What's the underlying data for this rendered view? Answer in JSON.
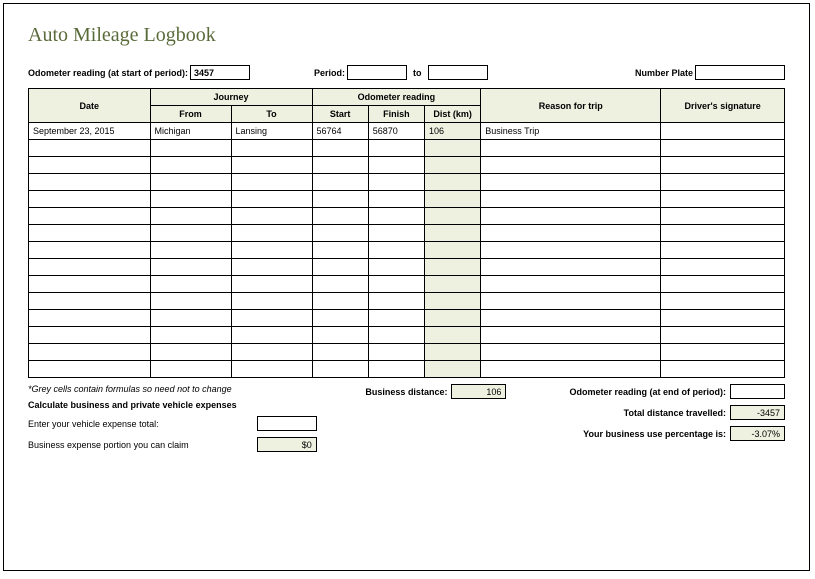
{
  "title": "Auto Mileage Logbook",
  "header": {
    "odometer_start_label": "Odometer reading (at start of period):",
    "odometer_start_value": "3457",
    "period_label": "Period:",
    "period_from": "",
    "period_to_label": "to",
    "period_to": "",
    "number_plate_label": "Number Plate",
    "number_plate_value": ""
  },
  "columns": {
    "date": "Date",
    "journey": "Journey",
    "from": "From",
    "to": "To",
    "odometer": "Odometer reading",
    "start": "Start",
    "finish": "Finish",
    "dist": "Dist (km)",
    "reason": "Reason for trip",
    "signature": "Driver's signature"
  },
  "rows": [
    {
      "date": "September 23, 2015",
      "from": "Michigan",
      "to": "Lansing",
      "start": "56764",
      "finish": "56870",
      "dist": "106",
      "reason": "Business Trip",
      "sig": ""
    },
    {
      "date": "",
      "from": "",
      "to": "",
      "start": "",
      "finish": "",
      "dist": "",
      "reason": "",
      "sig": ""
    },
    {
      "date": "",
      "from": "",
      "to": "",
      "start": "",
      "finish": "",
      "dist": "",
      "reason": "",
      "sig": ""
    },
    {
      "date": "",
      "from": "",
      "to": "",
      "start": "",
      "finish": "",
      "dist": "",
      "reason": "",
      "sig": ""
    },
    {
      "date": "",
      "from": "",
      "to": "",
      "start": "",
      "finish": "",
      "dist": "",
      "reason": "",
      "sig": ""
    },
    {
      "date": "",
      "from": "",
      "to": "",
      "start": "",
      "finish": "",
      "dist": "",
      "reason": "",
      "sig": ""
    },
    {
      "date": "",
      "from": "",
      "to": "",
      "start": "",
      "finish": "",
      "dist": "",
      "reason": "",
      "sig": ""
    },
    {
      "date": "",
      "from": "",
      "to": "",
      "start": "",
      "finish": "",
      "dist": "",
      "reason": "",
      "sig": ""
    },
    {
      "date": "",
      "from": "",
      "to": "",
      "start": "",
      "finish": "",
      "dist": "",
      "reason": "",
      "sig": ""
    },
    {
      "date": "",
      "from": "",
      "to": "",
      "start": "",
      "finish": "",
      "dist": "",
      "reason": "",
      "sig": ""
    },
    {
      "date": "",
      "from": "",
      "to": "",
      "start": "",
      "finish": "",
      "dist": "",
      "reason": "",
      "sig": ""
    },
    {
      "date": "",
      "from": "",
      "to": "",
      "start": "",
      "finish": "",
      "dist": "",
      "reason": "",
      "sig": ""
    },
    {
      "date": "",
      "from": "",
      "to": "",
      "start": "",
      "finish": "",
      "dist": "",
      "reason": "",
      "sig": ""
    },
    {
      "date": "",
      "from": "",
      "to": "",
      "start": "",
      "finish": "",
      "dist": "",
      "reason": "",
      "sig": ""
    },
    {
      "date": "",
      "from": "",
      "to": "",
      "start": "",
      "finish": "",
      "dist": "",
      "reason": "",
      "sig": ""
    }
  ],
  "footer": {
    "note": "*Grey cells contain formulas so need not to change",
    "calc_title": "Calculate business and private vehicle expenses",
    "expense_label": "Enter your vehicle expense total:",
    "expense_value": "",
    "claim_label": "Business expense portion you can claim",
    "claim_value": "$0",
    "biz_dist_label": "Business distance:",
    "biz_dist_value": "106",
    "odo_end_label": "Odometer reading (at end of period):",
    "odo_end_value": "",
    "total_dist_label": "Total distance travelled:",
    "total_dist_value": "-3457",
    "pct_label": "Your business use percentage is:",
    "pct_value": "-3.07%"
  },
  "colors": {
    "shaded": "#eef0e0",
    "title": "#5a6b3a"
  }
}
